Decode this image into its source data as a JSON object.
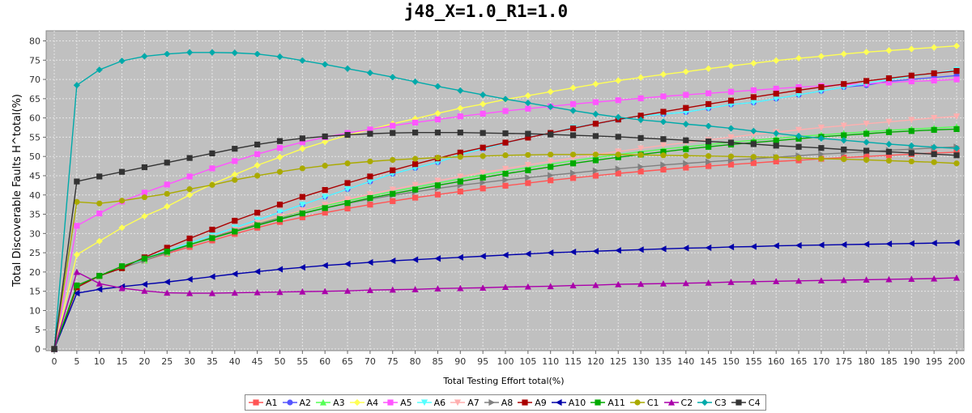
{
  "chart_data": {
    "type": "line",
    "title": "j48_X=1.0_R1=1.0",
    "xlabel": "Total Testing Effort total(%)",
    "ylabel": "Total Discoverable Faults H^total(%)",
    "xlim": [
      0,
      200
    ],
    "ylim": [
      0,
      82
    ],
    "xticks": [
      0,
      5,
      10,
      15,
      20,
      25,
      30,
      35,
      40,
      45,
      50,
      55,
      60,
      65,
      70,
      75,
      80,
      85,
      90,
      95,
      100,
      105,
      110,
      115,
      120,
      125,
      130,
      135,
      140,
      145,
      150,
      155,
      160,
      165,
      170,
      175,
      180,
      185,
      190,
      195,
      200
    ],
    "yticks": [
      0,
      5,
      10,
      15,
      20,
      25,
      30,
      35,
      40,
      45,
      50,
      55,
      60,
      65,
      70,
      75,
      80
    ],
    "grid": true,
    "legend_position": "bottom",
    "plot_background": "#c0c0c0",
    "x": [
      0,
      5,
      10,
      15,
      20,
      25,
      30,
      35,
      40,
      45,
      50,
      55,
      60,
      65,
      70,
      75,
      80,
      85,
      90,
      95,
      100,
      105,
      110,
      115,
      120,
      125,
      130,
      135,
      140,
      145,
      150,
      155,
      160,
      165,
      170,
      175,
      180,
      185,
      190,
      195,
      200
    ],
    "series": [
      {
        "name": "A1",
        "color": "#ff5555",
        "marker": "square",
        "values": [
          0,
          16,
          19,
          21,
          23,
          24.8,
          26.5,
          28.2,
          29.9,
          31.5,
          33,
          34.2,
          35.4,
          36.5,
          37.5,
          38.4,
          39.3,
          40.1,
          40.9,
          41.7,
          42.4,
          43.1,
          43.8,
          44.4,
          45,
          45.6,
          46.1,
          46.6,
          47.1,
          47.5,
          47.9,
          48.3,
          48.7,
          49,
          49.4,
          49.7,
          50,
          50.3,
          50.6,
          50.9,
          51.1
        ]
      },
      {
        "name": "A2",
        "color": "#5555ff",
        "marker": "circle",
        "values": [
          0,
          16,
          19,
          21,
          23.5,
          25.5,
          27.5,
          29.5,
          31.5,
          33.5,
          35.5,
          37.5,
          39.5,
          41.5,
          43.5,
          45.5,
          47,
          48.5,
          50.5,
          52,
          53.5,
          55,
          56,
          57.5,
          58.5,
          59.5,
          60.5,
          61,
          61.5,
          62.5,
          63.5,
          64,
          65,
          66,
          67,
          68,
          68.5,
          69.5,
          70,
          70.5,
          71
        ]
      },
      {
        "name": "A3",
        "color": "#55ff55",
        "marker": "triangle-up",
        "values": [
          0,
          16,
          19,
          21,
          23,
          25,
          27.2,
          29,
          31,
          32.7,
          34.4,
          35.8,
          37.2,
          38.5,
          39.7,
          40.9,
          42,
          43.1,
          44.2,
          45.2,
          46.2,
          47.1,
          48,
          48.9,
          49.7,
          50.5,
          51.2,
          51.9,
          52.5,
          53.1,
          53.7,
          54.2,
          54.7,
          55.2,
          55.6,
          56,
          56.4,
          56.8,
          57.1,
          57.4,
          57.7
        ]
      },
      {
        "name": "A4",
        "color": "#ffff55",
        "marker": "diamond",
        "values": [
          0,
          24.5,
          28,
          31.5,
          34.5,
          37,
          40,
          42.8,
          45.3,
          47.7,
          49.8,
          52,
          53.8,
          55.5,
          57,
          58.5,
          59.8,
          61.2,
          62.5,
          63.6,
          64.8,
          65.8,
          66.8,
          67.8,
          68.8,
          69.7,
          70.5,
          71.3,
          72,
          72.8,
          73.5,
          74.2,
          74.9,
          75.5,
          76,
          76.6,
          77.1,
          77.5,
          77.9,
          78.3,
          78.7
        ]
      },
      {
        "name": "A5",
        "color": "#ff55ff",
        "marker": "square",
        "values": [
          0,
          32,
          35.2,
          38.3,
          40.6,
          42.7,
          44.8,
          46.9,
          48.8,
          50.6,
          52.2,
          53.7,
          55,
          56.1,
          57,
          58,
          58.8,
          59.6,
          60.4,
          61.1,
          61.8,
          62.4,
          63,
          63.6,
          64.1,
          64.6,
          65.1,
          65.6,
          66,
          66.4,
          66.8,
          67.2,
          67.6,
          68,
          68.3,
          68.6,
          68.9,
          69.2,
          69.5,
          69.7,
          70
        ]
      },
      {
        "name": "A6",
        "color": "#55ffff",
        "marker": "triangle-down",
        "values": [
          0,
          16,
          19,
          21,
          23.5,
          25.5,
          27.5,
          29.5,
          31.5,
          33.5,
          35.5,
          37.5,
          39.5,
          41.5,
          43.5,
          45.5,
          47,
          48.5,
          50.5,
          52,
          53.5,
          55,
          56,
          57.5,
          58.5,
          59.5,
          60.5,
          61,
          61.5,
          62.5,
          63.5,
          64,
          65,
          66,
          67,
          68,
          69,
          70,
          70.8,
          71.6,
          72.5
        ]
      },
      {
        "name": "A7",
        "color": "#ffafaf",
        "marker": "triangle-down",
        "values": [
          0,
          16,
          19,
          21,
          23,
          25,
          27,
          29,
          31,
          32.8,
          34.5,
          36,
          37.5,
          38.9,
          40.2,
          41.4,
          42.6,
          43.7,
          44.8,
          45.8,
          46.8,
          47.8,
          48.7,
          49.6,
          50.5,
          51.3,
          52.1,
          52.9,
          53.6,
          54.3,
          55,
          55.7,
          56.3,
          56.9,
          57.5,
          58,
          58.5,
          59,
          59.5,
          60,
          60.4
        ]
      },
      {
        "name": "A8",
        "color": "#808080",
        "marker": "triangle-right",
        "values": [
          0,
          16,
          19,
          21,
          23,
          25,
          27,
          29,
          30.8,
          32.4,
          34,
          35.3,
          36.6,
          37.8,
          38.9,
          39.9,
          40.8,
          41.7,
          42.5,
          43.2,
          43.9,
          44.5,
          45.1,
          45.7,
          46.3,
          46.8,
          47.3,
          47.8,
          48.2,
          48.6,
          49,
          49.4,
          49.8,
          50.2,
          50.6,
          50.9,
          51.2,
          51.6,
          51.9,
          52.2,
          52.5
        ]
      },
      {
        "name": "A9",
        "color": "#aa0000",
        "marker": "square",
        "values": [
          0,
          16,
          19,
          21,
          23.8,
          26.3,
          28.7,
          31,
          33.3,
          35.4,
          37.5,
          39.5,
          41.3,
          43.1,
          44.8,
          46.4,
          48,
          49.5,
          51,
          52.3,
          53.6,
          54.9,
          56.1,
          57.3,
          58.5,
          59.6,
          60.6,
          61.6,
          62.6,
          63.6,
          64.5,
          65.4,
          66.3,
          67.2,
          68,
          68.8,
          69.6,
          70.3,
          71,
          71.6,
          72.2
        ]
      },
      {
        "name": "A10",
        "color": "#0000aa",
        "marker": "triangle-left",
        "values": [
          0,
          14.5,
          15.5,
          16.2,
          16.8,
          17.4,
          18.1,
          18.8,
          19.5,
          20.1,
          20.7,
          21.2,
          21.7,
          22.1,
          22.5,
          22.9,
          23.2,
          23.5,
          23.8,
          24.1,
          24.4,
          24.7,
          25,
          25.2,
          25.4,
          25.6,
          25.8,
          26,
          26.2,
          26.3,
          26.5,
          26.6,
          26.8,
          26.9,
          27,
          27.1,
          27.2,
          27.3,
          27.4,
          27.5,
          27.6
        ]
      },
      {
        "name": "A11",
        "color": "#00aa00",
        "marker": "square",
        "values": [
          0,
          16.5,
          19,
          21.5,
          23.5,
          25.3,
          27.1,
          28.8,
          30.5,
          32.1,
          33.7,
          35.2,
          36.6,
          37.9,
          39.2,
          40.3,
          41.4,
          42.5,
          43.5,
          44.5,
          45.5,
          46.4,
          47.3,
          48.2,
          49,
          49.8,
          50.5,
          51.2,
          51.9,
          52.5,
          53.1,
          53.6,
          54.1,
          54.6,
          55.1,
          55.5,
          55.9,
          56.3,
          56.6,
          56.9,
          57.1
        ]
      },
      {
        "name": "C1",
        "color": "#aaaa00",
        "marker": "circle",
        "values": [
          0,
          38.2,
          37.8,
          38.5,
          39.4,
          40.3,
          41.5,
          42.6,
          43.9,
          45,
          46,
          46.9,
          47.6,
          48.2,
          48.7,
          49.1,
          49.4,
          49.7,
          49.9,
          50.1,
          50.3,
          50.4,
          50.5,
          50.5,
          50.5,
          50.5,
          50.4,
          50.3,
          50.2,
          50.1,
          50,
          49.9,
          49.8,
          49.6,
          49.4,
          49.3,
          49.1,
          48.9,
          48.7,
          48.5,
          48.2
        ]
      },
      {
        "name": "C2",
        "color": "#aa00aa",
        "marker": "triangle-up",
        "values": [
          0,
          20,
          17,
          15.8,
          15.1,
          14.6,
          14.5,
          14.5,
          14.6,
          14.7,
          14.8,
          14.9,
          15,
          15.1,
          15.3,
          15.4,
          15.5,
          15.7,
          15.8,
          15.9,
          16.1,
          16.2,
          16.3,
          16.5,
          16.6,
          16.8,
          16.9,
          17,
          17.1,
          17.2,
          17.4,
          17.5,
          17.6,
          17.7,
          17.8,
          17.9,
          18,
          18.1,
          18.2,
          18.3,
          18.5
        ]
      },
      {
        "name": "C3",
        "color": "#00aaaa",
        "marker": "diamond",
        "values": [
          0,
          68.5,
          72.5,
          74.8,
          76,
          76.6,
          77,
          77,
          76.9,
          76.6,
          75.9,
          74.9,
          73.9,
          72.8,
          71.7,
          70.6,
          69.4,
          68.2,
          67.1,
          66,
          64.9,
          63.9,
          62.9,
          61.9,
          61,
          60.2,
          59.5,
          59,
          58.4,
          57.9,
          57.3,
          56.6,
          56,
          55.3,
          54.7,
          54.2,
          53.7,
          53.2,
          52.8,
          52.4,
          52.1
        ]
      },
      {
        "name": "C4",
        "color": "#333333",
        "marker": "square",
        "values": [
          0,
          43.5,
          44.8,
          46,
          47.2,
          48.4,
          49.6,
          50.8,
          52,
          53.1,
          54,
          54.7,
          55.2,
          55.6,
          55.9,
          56.1,
          56.2,
          56.2,
          56.2,
          56.1,
          56,
          55.9,
          55.7,
          55.5,
          55.3,
          55.1,
          54.8,
          54.5,
          54.2,
          53.9,
          53.6,
          53.2,
          52.8,
          52.5,
          52.2,
          51.8,
          51.5,
          51.2,
          50.9,
          50.6,
          50.3
        ]
      }
    ]
  }
}
